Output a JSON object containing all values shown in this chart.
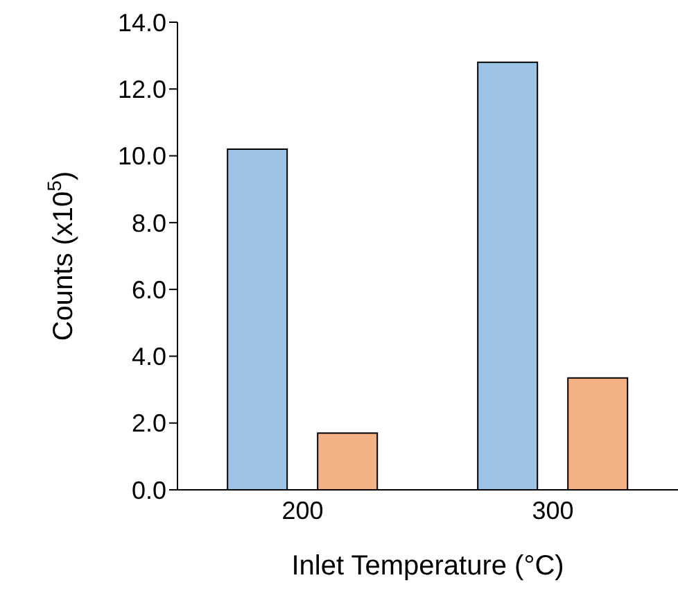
{
  "chart_data": {
    "type": "bar",
    "xlabel": "Inlet Temperature (°C)",
    "ylabel": "Counts (x10$^{5}$)",
    "categories": [
      "200",
      "300"
    ],
    "series": [
      {
        "color": "#9dc3e6",
        "values": [
          10.2,
          12.8
        ]
      },
      {
        "color": "#f4b183",
        "values": [
          1.7,
          3.35
        ]
      }
    ],
    "ylim": [
      0,
      14
    ],
    "yticks": [
      {
        "value": 0,
        "label": "0.0"
      },
      {
        "value": 2,
        "label": "2.0"
      },
      {
        "value": 4,
        "label": "4.0"
      },
      {
        "value": 6,
        "label": "6.0"
      },
      {
        "value": 8,
        "label": "8.0"
      },
      {
        "value": 10,
        "label": "10.0"
      },
      {
        "value": 12,
        "label": "12.0"
      },
      {
        "value": 14,
        "label": "14.0"
      }
    ],
    "grid": false,
    "legend": false
  }
}
